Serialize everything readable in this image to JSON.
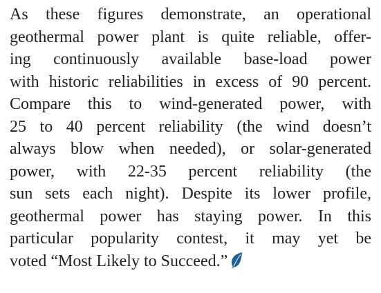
{
  "paragraph": {
    "lines": [
      "As these figures demonstrate, an operational",
      "geothermal power plant is quite reliable, offer-",
      "ing continuously available base-load power",
      "with historic reliabilities in excess of 90 percent.",
      "Compare this to wind-generated power, with",
      "25 to 40 percent reliability (the wind doesn’t",
      "always blow when needed), or solar-generated",
      "power, with 22-35 percent reliability (the",
      "sun sets each night). Despite its lower profile,",
      "geothermal power has staying power. In this",
      "particular popularity contest, it may yet be",
      "voted “Most Likely to Succeed.”"
    ]
  }
}
